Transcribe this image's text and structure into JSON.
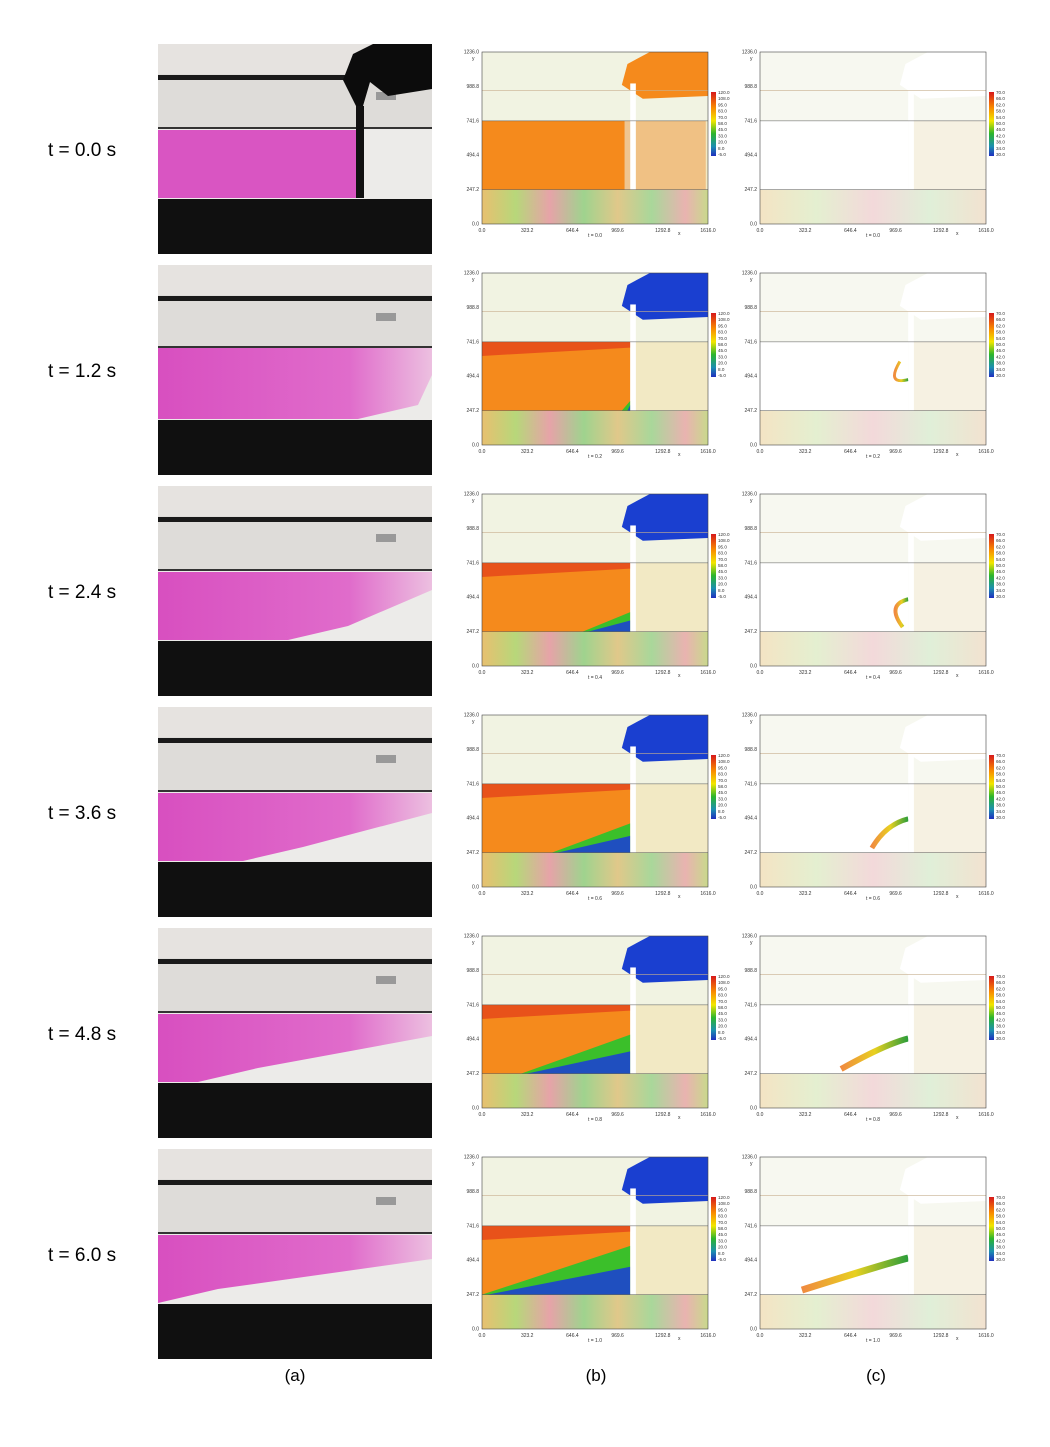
{
  "rows": [
    {
      "label": "t = 0.0 s",
      "plot_time": "t = 0.0"
    },
    {
      "label": "t = 1.2 s",
      "plot_time": "t = 0.2"
    },
    {
      "label": "t = 2.4 s",
      "plot_time": "t = 0.4"
    },
    {
      "label": "t = 3.6 s",
      "plot_time": "t = 0.6"
    },
    {
      "label": "t = 4.8 s",
      "plot_time": "t = 0.8"
    },
    {
      "label": "t = 6.0 s",
      "plot_time": "t = 1.0"
    }
  ],
  "axes": {
    "x_label": "x",
    "y_label": "y",
    "xticks": [
      "0.0",
      "323.2",
      "646.4",
      "969.6",
      "1292.8",
      "1616.0"
    ],
    "yticks": [
      "0.0",
      "247.2",
      "494.4",
      "741.6",
      "988.8",
      "1236.0"
    ]
  },
  "colorbar_b": [
    "120.0",
    "108.0",
    "95.0",
    "83.0",
    "70.0",
    "58.0",
    "45.0",
    "33.0",
    "20.0",
    "8.0",
    "-5.0"
  ],
  "colorbar_c": [
    "70.0",
    "66.0",
    "62.0",
    "58.0",
    "54.0",
    "50.0",
    "46.0",
    "42.0",
    "38.0",
    "34.0",
    "30.0"
  ],
  "panel_labels": [
    "(a)",
    "(b)",
    "(c)"
  ]
}
